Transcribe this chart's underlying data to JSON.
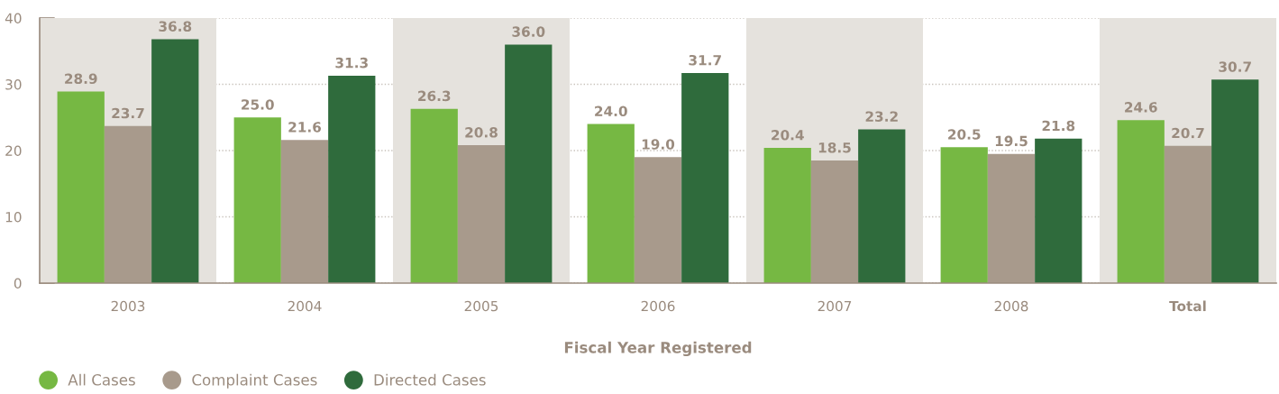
{
  "chart_data": {
    "type": "bar",
    "xlabel": "Fiscal Year Registered",
    "categories": [
      "2003",
      "2004",
      "2005",
      "2006",
      "2007",
      "2008",
      "Total"
    ],
    "series": [
      {
        "name": "All Cases",
        "color": "#76b843",
        "values": [
          28.9,
          25.0,
          26.3,
          24.0,
          20.4,
          20.5,
          24.6
        ],
        "value_labels": [
          "28.9",
          "25.0",
          "26.3",
          "24.0",
          "20.4",
          "20.5",
          "24.6"
        ]
      },
      {
        "name": "Complaint Cases",
        "color": "#a89a8c",
        "values": [
          23.7,
          21.6,
          20.8,
          19.0,
          18.5,
          19.5,
          20.7
        ],
        "value_labels": [
          "23.7",
          "21.6",
          "20.8",
          "19.0",
          "18.5",
          "19.5",
          "20.7"
        ]
      },
      {
        "name": "Directed Cases",
        "color": "#2f6b3c",
        "values": [
          36.8,
          31.3,
          36.0,
          31.7,
          23.2,
          21.8,
          30.7
        ],
        "value_labels": [
          "36.8",
          "31.3",
          "36.0",
          "31.7",
          "23.2",
          "21.8",
          "30.7"
        ]
      }
    ],
    "ylim": [
      0,
      40
    ],
    "yticks": [
      0,
      10,
      20,
      30,
      40
    ],
    "bands": [
      {
        "axis": "x",
        "from": "2003",
        "to": "2003",
        "color": "#e5e2dd"
      },
      {
        "axis": "x",
        "from": "2005",
        "to": "2005",
        "color": "#e5e2dd"
      },
      {
        "axis": "x",
        "from": "2007",
        "to": "2007",
        "color": "#e5e2dd"
      },
      {
        "axis": "x",
        "from": "Total",
        "to": "Total",
        "color": "#e5e2dd"
      }
    ],
    "grid": "y",
    "legend": "bottom left"
  }
}
